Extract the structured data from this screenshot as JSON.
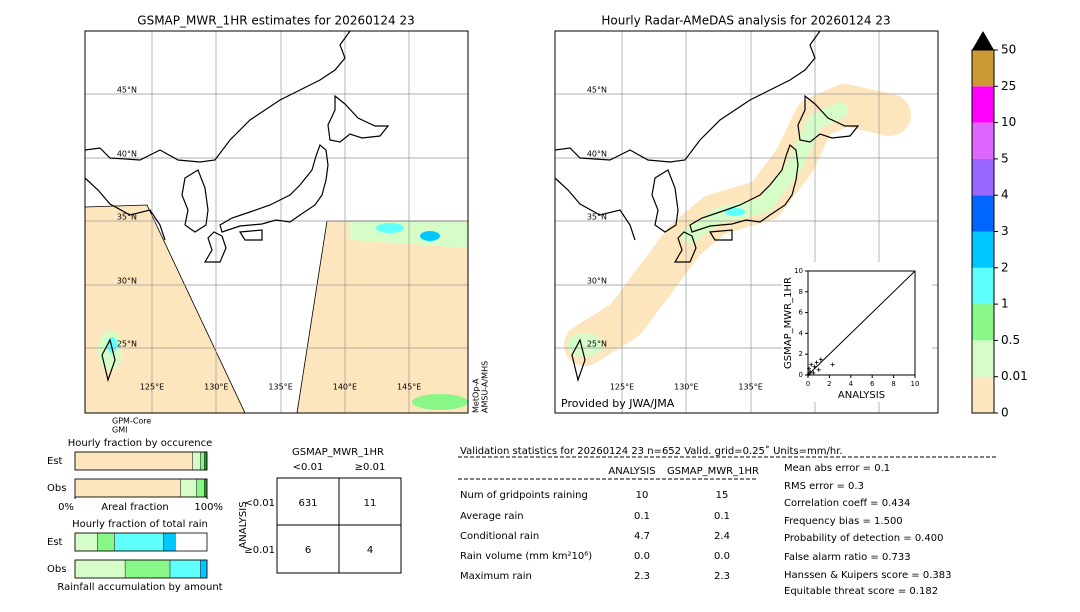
{
  "maps": [
    {
      "title": "GSMAP_MWR_1HR estimates for 20260124 23",
      "lat_labels": [
        "45°N",
        "40°N",
        "35°N",
        "30°N",
        "25°N"
      ],
      "lon_labels": [
        "125°E",
        "130°E",
        "135°E",
        "140°E",
        "145°E"
      ],
      "sensor_labels": [
        "GPM-Core",
        "GMI"
      ],
      "side_labels": [
        "MetOp-A",
        "AMSU-A/MHS"
      ]
    },
    {
      "title": "Hourly Radar-AMeDAS analysis for 20260124 23",
      "lat_labels": [
        "45°N",
        "40°N",
        "35°N",
        "30°N",
        "25°N"
      ],
      "lon_labels": [
        "125°E",
        "130°E",
        "135°E"
      ],
      "credit": "Provided by JWA/JMA"
    }
  ],
  "chart_data": [
    {
      "type": "colorbar",
      "ticks": [
        0,
        0.01,
        0.5,
        1,
        2,
        3,
        4,
        5,
        10,
        25,
        50
      ],
      "colors": [
        "#fde6bd",
        "#d6fcc8",
        "#88f788",
        "#5ffffd",
        "#00c8ff",
        "#0066ff",
        "#9966ff",
        "#dd66ff",
        "#ff00ff",
        "#cc9933"
      ],
      "arrow_color": "#000000"
    },
    {
      "type": "scatter",
      "xlabel": "ANALYSIS",
      "ylabel": "GSMAP_MWR_1HR",
      "xlim": [
        0,
        10
      ],
      "ylim": [
        0,
        10
      ],
      "xticks": [
        0,
        2,
        4,
        6,
        8,
        10
      ],
      "yticks": [
        0,
        2,
        4,
        6,
        8,
        10
      ],
      "x": [
        0.1,
        0.2,
        0.5,
        0.3,
        0.6,
        1.0,
        1.2,
        2.3,
        0.8,
        0.1
      ],
      "y": [
        0.1,
        0.3,
        0.2,
        1.0,
        0.8,
        0.5,
        1.5,
        1.0,
        1.2,
        0.6
      ],
      "color": "#000000"
    },
    {
      "type": "stacked-bar",
      "title": "Hourly fraction by occurence",
      "categories": [
        "Est",
        "Obs"
      ],
      "xlabel": "Areal fraction",
      "xlim": [
        0,
        100
      ],
      "xticks": [
        {
          "value": 0,
          "label": "0%"
        },
        {
          "value": 100,
          "label": "100%"
        }
      ],
      "series": [
        {
          "color": "#fde6bd",
          "values": [
            89,
            80
          ]
        },
        {
          "color": "#d6fcc8",
          "values": [
            6,
            12
          ]
        },
        {
          "color": "#88f788",
          "values": [
            3,
            6
          ]
        },
        {
          "color": "#1aa01a",
          "values": [
            2,
            2
          ]
        }
      ]
    },
    {
      "type": "stacked-bar",
      "title": "Hourly fraction of total rain",
      "categories": [
        "Est",
        "Obs"
      ],
      "xlabel": "Rainfall accumulation by amount",
      "xlim": [
        0,
        100
      ],
      "series": [
        {
          "color": "#d6fcc8",
          "values": [
            17,
            38
          ]
        },
        {
          "color": "#88f788",
          "values": [
            13,
            34
          ]
        },
        {
          "color": "#5ffffd",
          "values": [
            37,
            23
          ]
        },
        {
          "color": "#00c8ff",
          "values": [
            9,
            5
          ]
        }
      ]
    }
  ],
  "contingency": {
    "title": "GSMAP_MWR_1HR",
    "col_headers": [
      "<0.01",
      "≥0.01"
    ],
    "row_label": "ANALYSIS",
    "row_headers": [
      "<0.01",
      "≥0.01"
    ],
    "cells": [
      [
        "631",
        "11"
      ],
      [
        "6",
        "4"
      ]
    ]
  },
  "stats": {
    "title": "Validation statistics for 20260124 23  n=652 Valid. grid=0.25˚ Units=mm/hr.",
    "columns": [
      "ANALYSIS",
      "GSMAP_MWR_1HR"
    ],
    "rows": [
      [
        "Num of gridpoints raining",
        "10",
        "15"
      ],
      [
        "Average rain",
        "0.1",
        "0.1"
      ],
      [
        "Conditional rain",
        "4.7",
        "2.4"
      ],
      [
        "Rain volume (mm km²10⁶)",
        "0.0",
        "0.0"
      ],
      [
        "Maximum rain",
        "2.3",
        "2.3"
      ]
    ],
    "scores": [
      "Mean abs error =    0.1",
      "RMS error =    0.3",
      "Correlation coeff =  0.434",
      "Frequency bias =  1.500",
      "Probability of detection =  0.400",
      "False alarm ratio =  0.733",
      "Hanssen & Kuipers score =  0.383",
      "Equitable threat score =  0.182"
    ]
  }
}
